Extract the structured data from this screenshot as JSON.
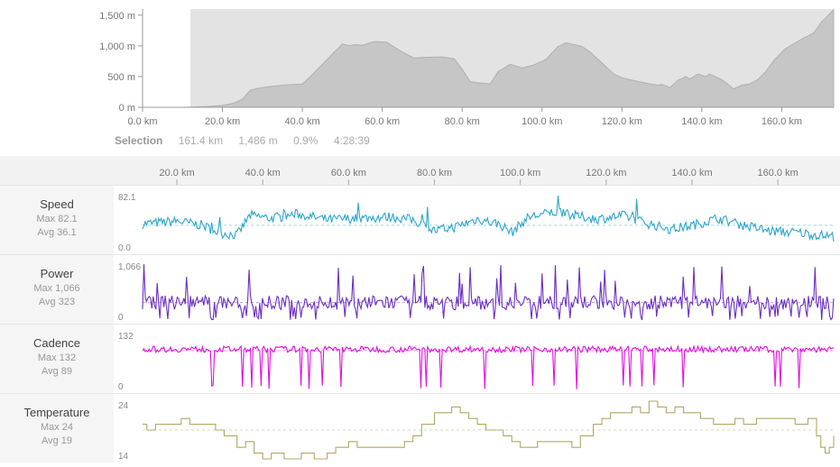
{
  "elevation": {
    "y_ticks": [
      "1,500 m",
      "1,000 m",
      "500 m",
      "0 m"
    ],
    "x_ticks": [
      "0.0 km",
      "20.0 km",
      "40.0 km",
      "60.0 km",
      "80.0 km",
      "100.0 km",
      "120.0 km",
      "140.0 km",
      "160.0 km"
    ],
    "colors": {
      "selection_bg": "#e3e3e3",
      "area": "#c6c6c6",
      "line": "#b0b0b0"
    }
  },
  "selection": {
    "label": "Selection",
    "distance": "161.4 km",
    "elevation_gain": "1,486 m",
    "grade": "0.9%",
    "time": "4:28:39"
  },
  "streams_axis": {
    "ticks": [
      "20.0 km",
      "40.0 km",
      "60.0 km",
      "80.0 km",
      "100.0 km",
      "120.0 km",
      "140.0 km",
      "160.0 km"
    ]
  },
  "streams": [
    {
      "name": "Speed",
      "max_label": "Max 82.1",
      "avg_label": "Avg 36.1",
      "top_label": "82.1",
      "bottom_label": "0.0",
      "color": "#2ba6cb"
    },
    {
      "name": "Power",
      "max_label": "Max 1,066",
      "avg_label": "Avg 323",
      "top_label": "1,066",
      "bottom_label": "0",
      "color": "#6a2fc4"
    },
    {
      "name": "Cadence",
      "max_label": "Max 132",
      "avg_label": "Avg 89",
      "top_label": "132",
      "bottom_label": "0",
      "color": "#e010e0"
    },
    {
      "name": "Temperature",
      "max_label": "Max 24",
      "avg_label": "Avg 19",
      "top_label": "24",
      "bottom_label": "14",
      "color": "#b0a866"
    }
  ],
  "chart_data": [
    {
      "type": "area",
      "x_unit": "km",
      "y_unit": "m",
      "xlim": [
        0,
        173
      ],
      "ylim": [
        0,
        1600
      ],
      "selection_range_km": [
        12,
        173
      ],
      "x": [
        0,
        11,
        12,
        16,
        20,
        23,
        25,
        27,
        29,
        31,
        35,
        40,
        42,
        45,
        48,
        50,
        52,
        53,
        55,
        58,
        61,
        63,
        65,
        68,
        70,
        75,
        78,
        80,
        82,
        84,
        87,
        89,
        92,
        95,
        98,
        101,
        104,
        106,
        110,
        112,
        115,
        118,
        120,
        124,
        127,
        129,
        130,
        132,
        134,
        136,
        137,
        139,
        141,
        142,
        145,
        148,
        150,
        152,
        154,
        156,
        158,
        161,
        165,
        168,
        170,
        173
      ],
      "y": [
        0,
        0,
        5,
        10,
        30,
        70,
        130,
        280,
        310,
        330,
        360,
        380,
        500,
        700,
        900,
        1030,
        1000,
        1020,
        1010,
        1070,
        1060,
        980,
        900,
        800,
        810,
        820,
        790,
        620,
        420,
        400,
        380,
        580,
        700,
        640,
        690,
        780,
        990,
        1050,
        990,
        900,
        720,
        540,
        480,
        420,
        380,
        360,
        370,
        320,
        440,
        500,
        460,
        540,
        500,
        540,
        450,
        300,
        360,
        380,
        450,
        580,
        760,
        960,
        1110,
        1210,
        1390,
        1590
      ]
    },
    {
      "type": "line",
      "name": "Speed",
      "ylim": [
        0,
        82.1
      ],
      "x_start": 12,
      "x_end": 173,
      "avg": 36.1,
      "min": 0.0,
      "max": 82.1
    },
    {
      "type": "line",
      "name": "Power",
      "ylim": [
        0,
        1066
      ],
      "x_start": 12,
      "x_end": 173,
      "avg": 323,
      "min": 0,
      "max": 1066
    },
    {
      "type": "line",
      "name": "Cadence",
      "ylim": [
        0,
        132
      ],
      "x_start": 12,
      "x_end": 173,
      "avg": 89,
      "min": 0,
      "max": 132
    },
    {
      "type": "line",
      "name": "Temperature",
      "ylim": [
        14,
        24
      ],
      "avg": 19,
      "x": [
        12,
        13,
        15,
        21,
        23,
        29,
        31,
        34,
        36,
        38,
        40,
        42,
        45,
        47,
        49,
        52,
        55,
        57,
        60,
        62,
        64,
        66,
        68,
        73,
        75,
        77,
        80,
        84,
        86,
        88,
        90,
        92,
        94,
        96,
        98,
        100,
        102,
        104,
        106,
        108,
        110,
        112,
        114,
        117,
        119,
        121,
        123,
        126,
        128,
        130,
        132,
        134,
        136,
        138,
        140,
        142,
        145,
        148,
        150,
        152,
        155,
        158,
        161,
        164,
        167,
        169,
        170,
        171,
        172,
        173
      ],
      "y": [
        20,
        19,
        20,
        21,
        20,
        19,
        18,
        16,
        17,
        15,
        14,
        15,
        14,
        14,
        15,
        14,
        15,
        16,
        17,
        16,
        16,
        16,
        16,
        17,
        18,
        20,
        22,
        23,
        22,
        21,
        20,
        19,
        19,
        18,
        17,
        16,
        16,
        17,
        17,
        17,
        17,
        16,
        18,
        20,
        21,
        22,
        22,
        23,
        22,
        24,
        23,
        22,
        23,
        22,
        22,
        21,
        20,
        20,
        21,
        20,
        21,
        21,
        21,
        20,
        21,
        18,
        16,
        15,
        16,
        18
      ]
    }
  ]
}
